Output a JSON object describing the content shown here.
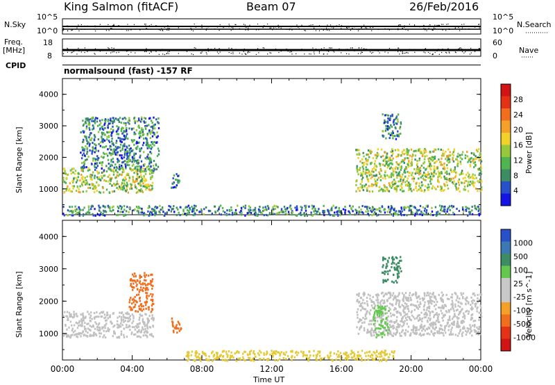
{
  "header": {
    "station": "King Salmon (fitACF)",
    "beam": "Beam 07",
    "date": "26/Feb/2016"
  },
  "status_panel": {
    "nsky_label": "N.Sky",
    "nsearch_label": "N.Search",
    "nsky_scale": [
      "10^5",
      "10^0"
    ],
    "nsearch_scale": [
      "10^5",
      "10^0"
    ],
    "freq_label_top": "Freq.",
    "freq_label_bottom": "[MHz]",
    "freq_scale": [
      "18",
      "8"
    ],
    "nave_label": "Nave",
    "nave_scale": [
      "60",
      "0"
    ],
    "cpid_label": "CPID",
    "cpid_text": "normalsound (fast) -157 RF"
  },
  "colors": {
    "power": [
      "#1414e6",
      "#2850c8",
      "#3c8c64",
      "#50b450",
      "#96c83c",
      "#f0d228",
      "#f5a028",
      "#f06e1e",
      "#e63214",
      "#d21414"
    ],
    "velocity": [
      "#2850c8",
      "#3c78b4",
      "#3c8c64",
      "#64c850",
      "#c8c8c8",
      "#c8c8c8",
      "#f5a028",
      "#f06e1e",
      "#e63214",
      "#d21414"
    ],
    "ground_scatter": "#c0c0c0"
  },
  "chart_data": [
    {
      "type": "heatmap",
      "name": "power",
      "ylabel": "Slant Range [km]",
      "xlabel": "",
      "colorbar_label": "Power [dB]",
      "colorbar_ticks": [
        "4",
        "8",
        "12",
        "16",
        "20",
        "24",
        "28"
      ],
      "ylim": [
        180,
        4500
      ],
      "yticks": [
        "1000",
        "2000",
        "3000",
        "4000"
      ],
      "xlim": [
        0,
        24
      ],
      "xticks": [],
      "regions": [
        {
          "t": [
            0.0,
            5.2
          ],
          "r": [
            900,
            1700
          ],
          "value_db": 14
        },
        {
          "t": [
            1.0,
            5.5
          ],
          "r": [
            1600,
            3300
          ],
          "value_db": 6
        },
        {
          "t": [
            6.2,
            6.8
          ],
          "r": [
            1050,
            1500
          ],
          "value_db": 6
        },
        {
          "t": [
            16.8,
            24.0
          ],
          "r": [
            950,
            2300
          ],
          "value_db": 12
        },
        {
          "t": [
            18.3,
            19.4
          ],
          "r": [
            2600,
            3400
          ],
          "value_db": 6
        },
        {
          "t": [
            0.0,
            24.0
          ],
          "r": [
            180,
            500
          ],
          "value_db": 6
        }
      ]
    },
    {
      "type": "heatmap",
      "name": "velocity",
      "ylabel": "Slant Range [km]",
      "xlabel": "Time UT",
      "colorbar_label": "Velocity [m s^-1]",
      "colorbar_ticks": [
        "1000",
        "500",
        "100",
        "25",
        "-25",
        "-100",
        "-500",
        "-1000"
      ],
      "ylim": [
        180,
        4500
      ],
      "yticks": [
        "1000",
        "2000",
        "3000",
        "4000"
      ],
      "xlim": [
        0,
        24
      ],
      "xticks": [
        "00:00",
        "04:00",
        "08:00",
        "12:00",
        "16:00",
        "20:00",
        "00:00"
      ],
      "regions": [
        {
          "t": [
            0.0,
            5.2
          ],
          "r": [
            900,
            1700
          ],
          "value": "ground_scatter"
        },
        {
          "t": [
            3.8,
            5.2
          ],
          "r": [
            1700,
            2900
          ],
          "value_ms": -150
        },
        {
          "t": [
            6.2,
            6.8
          ],
          "r": [
            1050,
            1500
          ],
          "value_ms": -200
        },
        {
          "t": [
            16.8,
            24.0
          ],
          "r": [
            950,
            2300
          ],
          "value": "ground_scatter"
        },
        {
          "t": [
            17.8,
            18.7
          ],
          "r": [
            900,
            1900
          ],
          "value_ms": 80
        },
        {
          "t": [
            18.3,
            19.4
          ],
          "r": [
            2600,
            3400
          ],
          "value_ms": 200
        },
        {
          "t": [
            7.0,
            19.0
          ],
          "r": [
            180,
            500
          ],
          "value_ms": -40
        }
      ]
    }
  ]
}
